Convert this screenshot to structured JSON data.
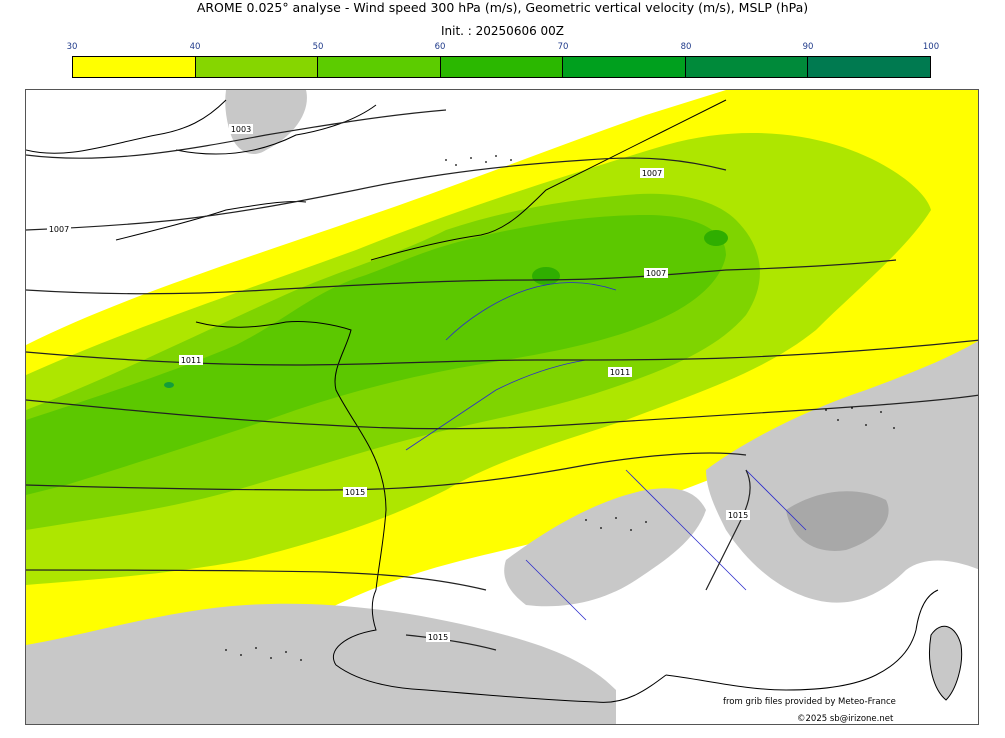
{
  "header": {
    "title": "AROME 0.025° analyse - Wind speed 300 hPa (m/s), Geometric vertical velocity (m/s), MSLP (hPa)",
    "subtitle": "Init. : 20250606 00Z"
  },
  "colorbar": {
    "ticks": [
      "30",
      "40",
      "50",
      "60",
      "70",
      "80",
      "90",
      "100"
    ],
    "colors": [
      "#ffff00",
      "#b8e600",
      "#86d600",
      "#5ccc00",
      "#2bb800",
      "#00a01e",
      "#008a3a",
      "#007a50"
    ],
    "unit": "m/s"
  },
  "map": {
    "colors": {
      "white": "#ffffff",
      "yellow": "#ffff00",
      "light_green": "#aee600",
      "mid_green": "#7fd400",
      "green": "#5cc800",
      "dark_green": "#2fae00",
      "darker_green": "#139d3b",
      "gray": "#c8c8c8",
      "dark_gray": "#a8a8a8",
      "coast": "#000000",
      "river": "#2b2bcc",
      "isobar": "#222222"
    },
    "isobar_labels": [
      {
        "text": "1003"
      },
      {
        "text": "1007"
      },
      {
        "text": "1007"
      },
      {
        "text": "1007"
      },
      {
        "text": "1011"
      },
      {
        "text": "1011"
      },
      {
        "text": "1015"
      },
      {
        "text": "1015"
      },
      {
        "text": "1015"
      }
    ]
  },
  "footer": {
    "source": "from grib files provided by Meteo-France",
    "copyright": "©2025 sb@irizone.net"
  }
}
